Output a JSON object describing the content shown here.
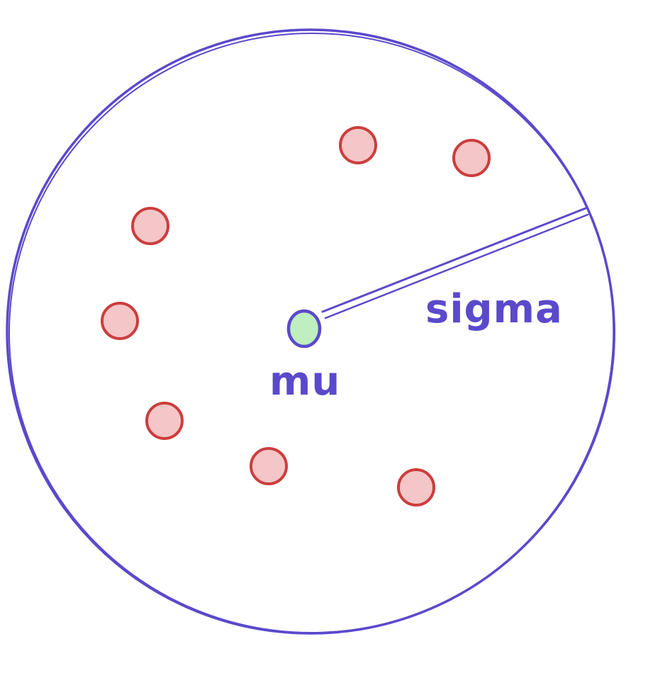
{
  "labels": {
    "center": "mu",
    "radius": "sigma"
  },
  "colors": {
    "outline": "#5b49cc",
    "sample_fill": "#f5c6c7",
    "sample_stroke": "#cc3d3d",
    "center_fill": "#bfeebf",
    "center_stroke": "#5b49cc"
  },
  "samples": [
    {
      "name": "sample-point-1"
    },
    {
      "name": "sample-point-2"
    },
    {
      "name": "sample-point-3"
    },
    {
      "name": "sample-point-4"
    },
    {
      "name": "sample-point-5"
    },
    {
      "name": "sample-point-6"
    },
    {
      "name": "sample-point-7"
    }
  ]
}
